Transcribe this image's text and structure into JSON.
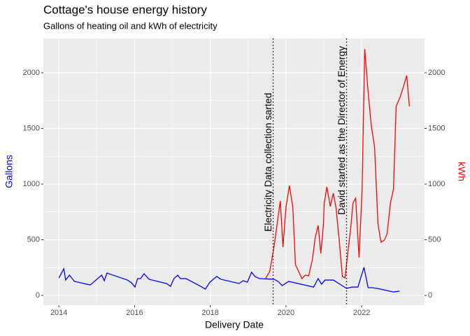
{
  "chart_data": {
    "type": "line",
    "title": "Cottage's house energy history",
    "subtitle": "Gallons of heating oil and kWh of electricity",
    "x_label": "Delivery Date",
    "y_label": "Gallons",
    "y2_label": "kWh",
    "y_label_color": "blue",
    "y2_label_color": "red",
    "xlim": [
      2013.59,
      2023.66
    ],
    "xticks": [
      2014,
      2016,
      2018,
      2020,
      2022
    ],
    "ylim": [
      -88,
      2308
    ],
    "yticks": [
      0,
      500,
      1000,
      1500,
      2000
    ],
    "y2lim": [
      -88,
      2308
    ],
    "y2ticks": [
      0,
      500,
      1000,
      1500,
      2000
    ],
    "grid": true,
    "annotations": [
      {
        "x": 2019.66,
        "label": "Electricity Data collection sarted"
      },
      {
        "x": 2021.6,
        "label": "David started as the Director of Energy"
      }
    ],
    "series": [
      {
        "name": "Gallons",
        "color": "#0000ff",
        "x": [
          2014.0,
          2014.13,
          2014.18,
          2014.28,
          2014.41,
          2014.83,
          2015.13,
          2015.2,
          2015.27,
          2015.81,
          2015.92,
          2016.01,
          2016.08,
          2016.16,
          2016.25,
          2016.38,
          2016.84,
          2016.95,
          2017.04,
          2017.14,
          2017.21,
          2017.36,
          2017.78,
          2017.87,
          2017.99,
          2018.08,
          2018.17,
          2018.28,
          2018.76,
          2018.87,
          2018.98,
          2019.09,
          2019.18,
          2019.3,
          2019.68,
          2019.79,
          2019.9,
          2020.07,
          2020.73,
          2020.85,
          2020.94,
          2021.03,
          2021.25,
          2021.6,
          2021.75,
          2021.9,
          2022.06,
          2022.17,
          2022.27,
          2022.41,
          2022.84,
          2023.0
        ],
        "values": [
          157,
          239,
          138,
          182,
          126,
          94,
          182,
          132,
          201,
          138,
          113,
          75,
          151,
          151,
          195,
          145,
          107,
          82,
          151,
          182,
          151,
          151,
          75,
          57,
          119,
          145,
          170,
          145,
          107,
          132,
          119,
          208,
          170,
          151,
          145,
          126,
          88,
          126,
          75,
          151,
          101,
          138,
          138,
          63,
          75,
          75,
          252,
          69,
          69,
          63,
          31,
          38
        ]
      },
      {
        "name": "kWh",
        "color": "#ff0000",
        "axis": "y2",
        "x": [
          2019.46,
          2019.57,
          2019.68,
          2019.85,
          2019.92,
          2020.0,
          2020.09,
          2020.18,
          2020.25,
          2020.42,
          2020.51,
          2020.6,
          2020.7,
          2020.77,
          2020.85,
          2020.92,
          2020.99,
          2021.01,
          2021.08,
          2021.17,
          2021.25,
          2021.32,
          2021.4,
          2021.49,
          2021.56,
          2021.64,
          2021.71,
          2021.77,
          2021.84,
          2021.93,
          2022.01,
          2022.08,
          2022.16,
          2022.25,
          2022.34,
          2022.43,
          2022.51,
          2022.6,
          2022.67,
          2022.76,
          2022.84,
          2022.91,
          2023.02,
          2023.09,
          2023.19,
          2023.26
        ],
        "values": [
          151,
          214,
          428,
          849,
          434,
          792,
          987,
          792,
          277,
          151,
          182,
          176,
          327,
          516,
          629,
          377,
          642,
          830,
          975,
          799,
          918,
          792,
          516,
          170,
          157,
          403,
          604,
          830,
          874,
          340,
          943,
          2214,
          1868,
          1535,
          1333,
          642,
          478,
          497,
          553,
          830,
          956,
          1698,
          1786,
          1862,
          1975,
          1698
        ]
      }
    ]
  }
}
